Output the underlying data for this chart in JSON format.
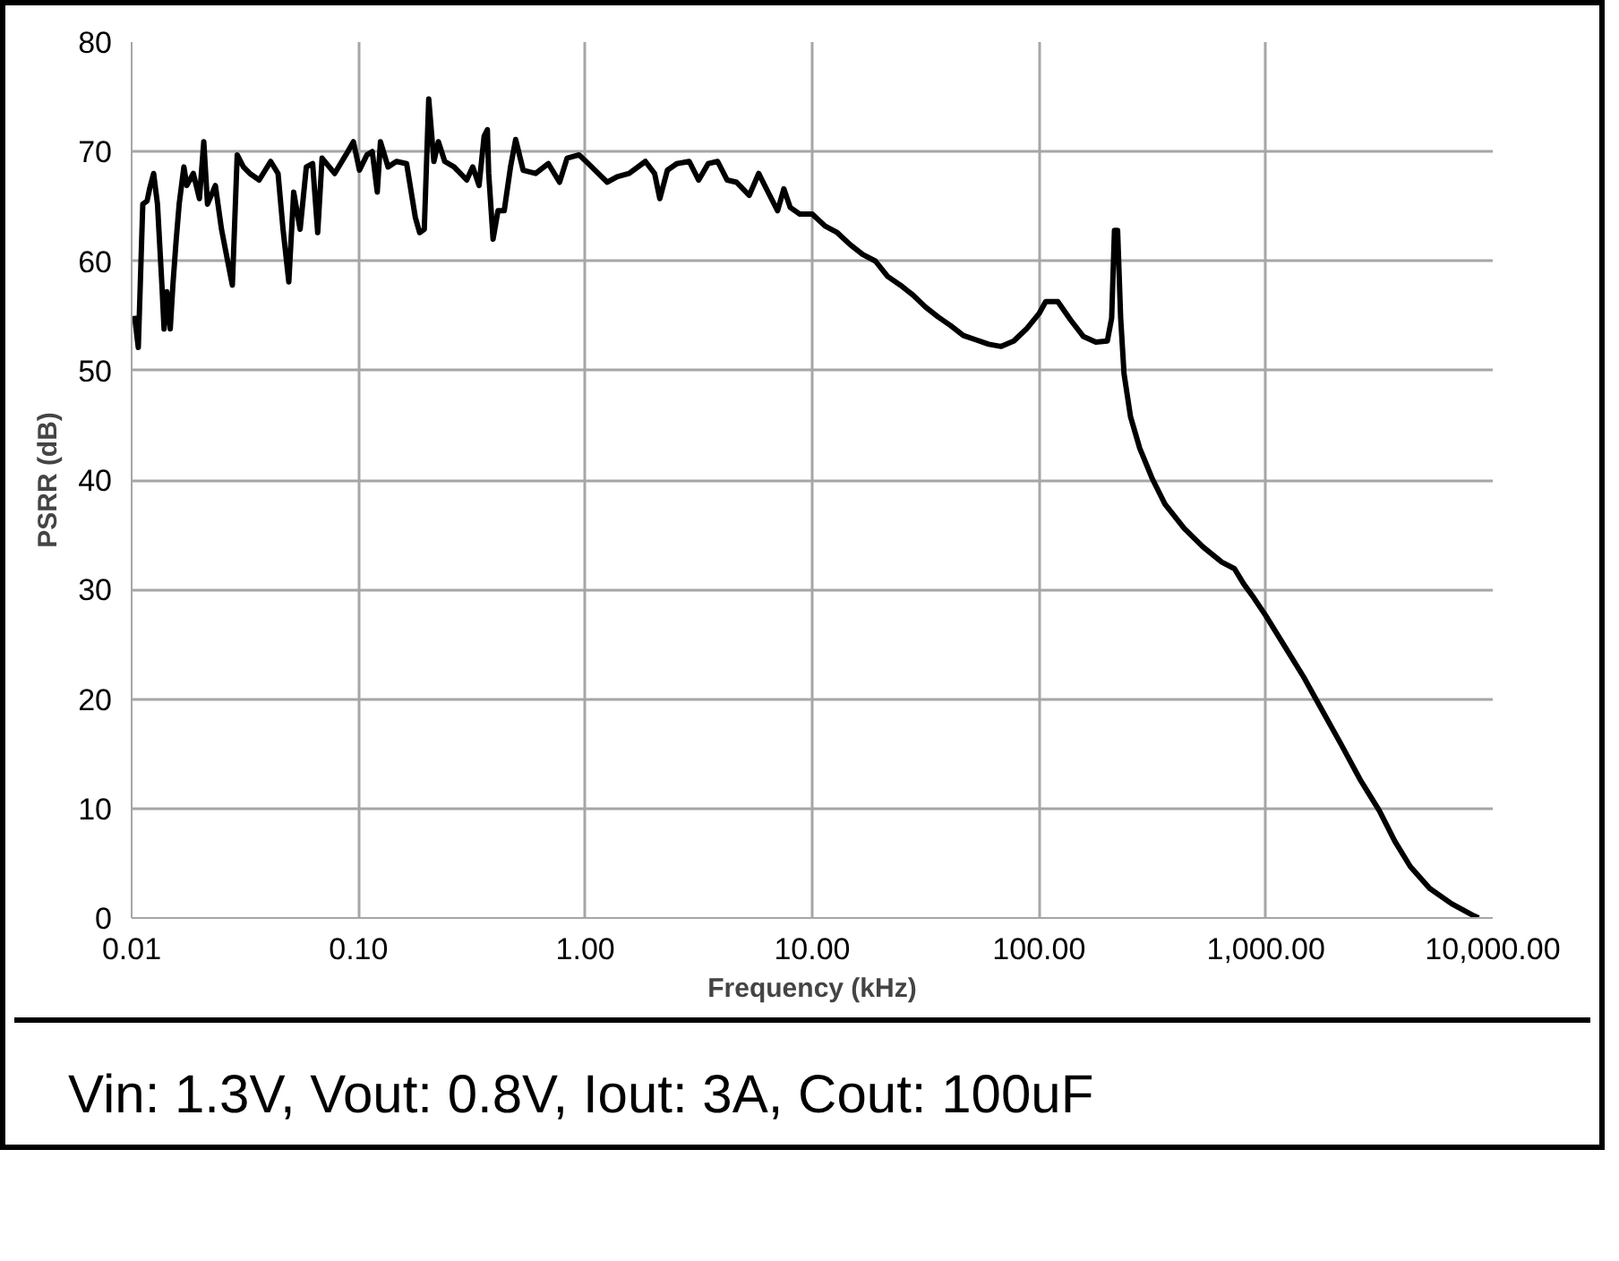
{
  "chart_data": {
    "type": "line",
    "xlabel": "Frequency (kHz)",
    "ylabel": "PSRR (dB)",
    "log": "x",
    "grid": true,
    "marker": "none",
    "line_style": "solid",
    "xlim": [
      0.01,
      10000
    ],
    "ylim": [
      0,
      80
    ],
    "xticks": [
      {
        "value": 0.01,
        "label": "0.01"
      },
      {
        "value": 0.1,
        "label": "0.10"
      },
      {
        "value": 1,
        "label": "1.00"
      },
      {
        "value": 10,
        "label": "10.00"
      },
      {
        "value": 100,
        "label": "100.00"
      },
      {
        "value": 1000,
        "label": "1,000.00"
      },
      {
        "value": 10000,
        "label": "10,000.00"
      }
    ],
    "yticks": [
      0,
      10,
      20,
      30,
      40,
      50,
      60,
      70,
      80
    ],
    "annotations": [
      "Vin: 1.3V, Vout: 0.8V, Iout: 3A, Cout: 100uF"
    ],
    "series": [
      {
        "color": "#000000",
        "x": [
          0.0103,
          0.0107,
          0.0112,
          0.0117,
          0.012,
          0.0125,
          0.013,
          0.0136,
          0.0139,
          0.0143,
          0.0148,
          0.0152,
          0.0157,
          0.0162,
          0.017,
          0.0175,
          0.0187,
          0.0199,
          0.0208,
          0.0216,
          0.0234,
          0.0249,
          0.0265,
          0.0278,
          0.0292,
          0.0311,
          0.0332,
          0.0365,
          0.041,
          0.0442,
          0.0465,
          0.0493,
          0.0518,
          0.0553,
          0.0589,
          0.0628,
          0.0661,
          0.0691,
          0.0785,
          0.088,
          0.095,
          0.101,
          0.109,
          0.115,
          0.121,
          0.125,
          0.135,
          0.147,
          0.163,
          0.178,
          0.186,
          0.195,
          0.204,
          0.215,
          0.225,
          0.24,
          0.264,
          0.3,
          0.319,
          0.34,
          0.358,
          0.37,
          0.375,
          0.392,
          0.412,
          0.439,
          0.468,
          0.493,
          0.532,
          0.604,
          0.687,
          0.77,
          0.831,
          0.938,
          1.03,
          1.14,
          1.25,
          1.38,
          1.56,
          1.84,
          2.02,
          2.13,
          2.3,
          2.53,
          2.87,
          3.16,
          3.48,
          3.83,
          4.22,
          4.64,
          5.28,
          5.81,
          6.39,
          7.04,
          7.5,
          8.0,
          8.81,
          10.0,
          11.4,
          12.9,
          14.7,
          16.7,
          19.0,
          21.5,
          24.5,
          27.8,
          31.6,
          35.9,
          40.8,
          46.4,
          52.8,
          60.0,
          68.1,
          77.4,
          88.0,
          100,
          107,
          121,
          138,
          157,
          178,
          200,
          209,
          215,
          222,
          229,
          237,
          253,
          278,
          316,
          359,
          436,
          528,
          639,
          727,
          799,
          881,
          1000,
          1212,
          1468,
          1778,
          2154,
          2610,
          3162,
          3703,
          4329,
          5275,
          6591,
          8255,
          8668
        ],
        "values": [
          55,
          52.1,
          65.2,
          65.5,
          66.6,
          68,
          65.2,
          57.8,
          53.8,
          57.2,
          53.8,
          57.8,
          61.8,
          65.2,
          68.6,
          66.9,
          68,
          65.7,
          70.9,
          65.2,
          66.9,
          62.9,
          60,
          57.8,
          69.7,
          68.6,
          68,
          67.4,
          69.1,
          68,
          62.9,
          58.1,
          66.3,
          62.9,
          68.6,
          68.9,
          62.6,
          69.4,
          68,
          69.7,
          70.9,
          68.3,
          69.7,
          70,
          66.3,
          70.9,
          68.6,
          69.1,
          68.9,
          64,
          62.6,
          62.9,
          74.8,
          69.1,
          70.9,
          69.1,
          68.6,
          67.4,
          68.6,
          66.9,
          71.4,
          72,
          68,
          62,
          64.6,
          64.6,
          68.6,
          71.1,
          68.3,
          68,
          68.9,
          67.2,
          69.4,
          69.7,
          68.9,
          68,
          67.2,
          67.7,
          68,
          69.1,
          68,
          65.7,
          68.3,
          68.9,
          69.1,
          67.4,
          68.9,
          69.1,
          67.4,
          67.2,
          66,
          68,
          66.3,
          64.6,
          66.6,
          64.9,
          64.3,
          64.3,
          63.2,
          62.6,
          61.5,
          60.6,
          60,
          58.6,
          57.8,
          56.9,
          55.8,
          54.9,
          54.1,
          53.2,
          52.8,
          52.4,
          52.2,
          52.7,
          53.8,
          55.2,
          56.3,
          56.3,
          54.6,
          53.1,
          52.6,
          52.7,
          54.8,
          62.8,
          62.8,
          54.8,
          49.7,
          45.8,
          42.9,
          40.1,
          37.8,
          35.6,
          33.9,
          32.5,
          31.9,
          30.5,
          29.3,
          27.6,
          24.8,
          22,
          18.9,
          15.8,
          12.6,
          9.8,
          7,
          4.7,
          2.7,
          1.3,
          0.2,
          0
        ]
      }
    ]
  }
}
